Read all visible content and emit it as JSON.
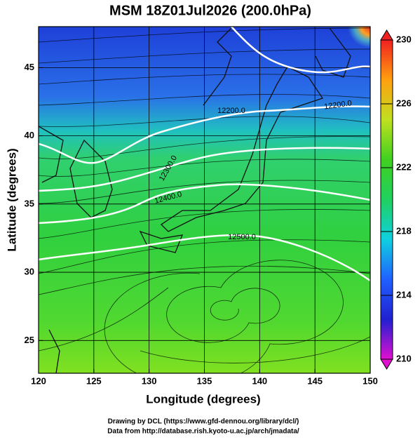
{
  "chart_data": {
    "type": "map",
    "title": "MSM 18Z01Jul2026 (200.0hPa)",
    "x_label": "Longitude (degrees)",
    "y_label": "Latitude  (degrees)",
    "xlim": [
      120,
      150
    ],
    "ylim": [
      22.6,
      48
    ],
    "xticks": [
      120,
      125,
      130,
      135,
      140,
      145,
      150
    ],
    "yticks": [
      25,
      30,
      35,
      40,
      45
    ],
    "contours": [
      {
        "value": 12200,
        "label": "12200.0"
      },
      {
        "value": 12300,
        "label": "12300.0"
      },
      {
        "value": 12400,
        "label": "12400.0"
      },
      {
        "value": 12500,
        "label": "12500.0"
      }
    ],
    "colorbar": {
      "lim": [
        210,
        230
      ],
      "ticks": [
        210,
        214,
        218,
        222,
        226,
        230
      ],
      "colors": [
        "#e010d0",
        "#2020d0",
        "#2060ff",
        "#10d0e0",
        "#20d060",
        "#40d020",
        "#c0e020",
        "#ffa010",
        "#f02020"
      ]
    },
    "credits": [
      "Drawing by DCL (https://www.gfd-dennou.org/library/dcl/)",
      "Data from http://database.rish.kyoto-u.ac.jp/arch/jmadata/"
    ]
  }
}
